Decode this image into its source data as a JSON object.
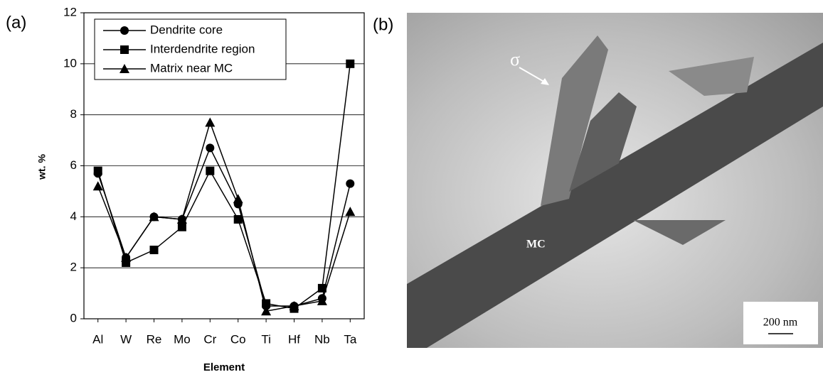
{
  "chart_data": {
    "type": "line",
    "panel_label": "(a)",
    "x_label": "Element",
    "y_label": "wt. %",
    "categories": [
      "Al",
      "W",
      "Re",
      "Mo",
      "Cr",
      "Co",
      "Ti",
      "Hf",
      "Nb",
      "Ta"
    ],
    "series": [
      {
        "name": "Dendrite core",
        "color": "#000000",
        "marker": "circle",
        "values": [
          5.7,
          2.4,
          4.0,
          3.9,
          6.7,
          4.5,
          0.5,
          0.5,
          0.8,
          5.3
        ]
      },
      {
        "name": "Interdendrite region",
        "color": "#000000",
        "marker": "square",
        "values": [
          5.8,
          2.2,
          2.7,
          3.6,
          5.8,
          3.9,
          0.6,
          0.4,
          1.2,
          10.0
        ]
      },
      {
        "name": "Matrix near MC",
        "color": "#000000",
        "marker": "triangle",
        "values": [
          5.2,
          2.4,
          4.0,
          3.9,
          7.7,
          4.7,
          0.3,
          0.5,
          0.7,
          4.2
        ]
      }
    ],
    "ylim": [
      0,
      12
    ],
    "yticks": [
      0,
      2,
      4,
      6,
      8,
      10,
      12
    ],
    "grid": true,
    "legend": "top-left"
  },
  "micrograph": {
    "panel_label": "(b)",
    "phase_labels": [
      "σ",
      "MC"
    ],
    "scale_bar": "200 nm"
  }
}
